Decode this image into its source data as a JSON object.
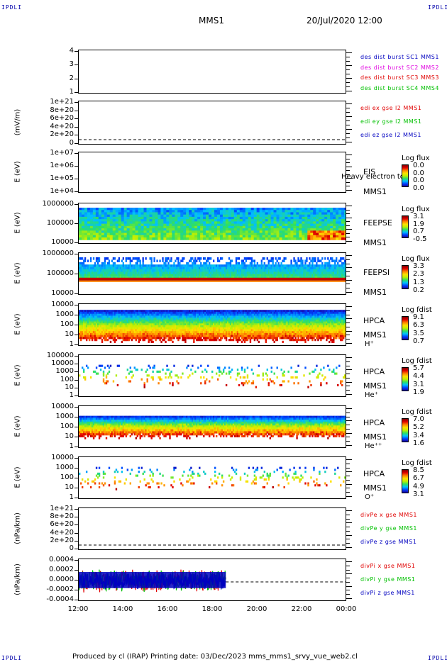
{
  "header": {
    "corner_tl": "IPDLI",
    "corner_tr": "IPDLI",
    "corner_bl": "IPDLI",
    "corner_br": "IPDLI",
    "spacecraft": "MMS1",
    "datetime": "20/Jul/2020 12:00"
  },
  "footer": {
    "text": "Produced by cl (IRAP)    Printing date: 03/Dec/2023    mms_mms1_srvy_vue_web2.cl"
  },
  "colors": {
    "blue": "#0000c0",
    "magenta": "#e000e0",
    "red": "#e00000",
    "green": "#00c000"
  },
  "chart_data": [
    {
      "type": "line",
      "panel": "des-dist-burst",
      "yticks": [
        "4",
        "3",
        "2",
        "1"
      ],
      "ylim": [
        0.5,
        4.5
      ],
      "series": [
        {
          "name": "des dist burst SC1 MMS1",
          "color": "#0000c0",
          "values": []
        },
        {
          "name": "des dist burst SC2 MMS2",
          "color": "#e000e0",
          "values": []
        },
        {
          "name": "des dist burst SC3 MMS3",
          "color": "#e00000",
          "values": []
        },
        {
          "name": "des dist burst SC4 MMS4",
          "color": "#00c000",
          "values": []
        }
      ]
    },
    {
      "type": "line",
      "panel": "edi-e-field",
      "ylabel": "(mV/m)",
      "yticks": [
        "1e+21",
        "8e+20",
        "6e+20",
        "4e+20",
        "2e+20",
        "0"
      ],
      "ylim": [
        0,
        1e+21
      ],
      "series": [
        {
          "name": "edi ex gse l2 MMS1",
          "color": "#e00000",
          "values": []
        },
        {
          "name": "edi ey gse l2 MMS1",
          "color": "#00c000",
          "values": []
        },
        {
          "name": "edi ez gse l2 MMS1",
          "color": "#0000c0",
          "values": []
        }
      ]
    },
    {
      "type": "heatmap",
      "panel": "eis",
      "ylabel": "E (eV)",
      "yticks": [
        "1e+07",
        "1e+06",
        "1e+05",
        "1e+04"
      ],
      "right_labels": [
        "EIS",
        "Heavy electron to",
        "MMS1"
      ],
      "colorbar": {
        "title": "Log flux",
        "ticks": [
          "0.0",
          "0.0",
          "0.0",
          "0.0"
        ]
      }
    },
    {
      "type": "heatmap",
      "panel": "feeps-e",
      "ylabel": "E (eV)",
      "yticks": [
        "1000000",
        "100000",
        "10000"
      ],
      "right_labels": [
        "FEEPSE",
        "MMS1"
      ],
      "colorbar": {
        "title": "Log flux",
        "ticks": [
          "3.1",
          "1.9",
          "0.7",
          "-0.5"
        ]
      }
    },
    {
      "type": "heatmap",
      "panel": "feeps-i",
      "ylabel": "E (eV)",
      "yticks": [
        "1000000",
        "100000",
        "10000"
      ],
      "right_labels": [
        "FEEPSI",
        "MMS1"
      ],
      "colorbar": {
        "title": "Log flux",
        "ticks": [
          "3.3",
          "2.3",
          "1.3",
          "0.2"
        ]
      }
    },
    {
      "type": "heatmap",
      "panel": "hpca-h",
      "ylabel": "E (eV)",
      "yticks": [
        "10000",
        "1000",
        "100",
        "10",
        "1"
      ],
      "right_labels": [
        "HPCA",
        "MMS1",
        "H⁺"
      ],
      "colorbar": {
        "title": "Log fdist",
        "ticks": [
          "9.1",
          "6.3",
          "3.5",
          "0.7"
        ]
      }
    },
    {
      "type": "heatmap",
      "panel": "hpca-he",
      "ylabel": "E (eV)",
      "yticks": [
        "100000",
        "10000",
        "1000",
        "100",
        "10",
        "1"
      ],
      "right_labels": [
        "HPCA",
        "MMS1",
        "He⁺"
      ],
      "colorbar": {
        "title": "Log fdist",
        "ticks": [
          "5.7",
          "4.4",
          "3.1",
          "1.9"
        ]
      }
    },
    {
      "type": "heatmap",
      "panel": "hpca-hepp",
      "ylabel": "E (eV)",
      "yticks": [
        "10000",
        "1000",
        "100",
        "10",
        "1"
      ],
      "right_labels": [
        "HPCA",
        "MMS1",
        "He⁺⁺"
      ],
      "colorbar": {
        "title": "Log fdist",
        "ticks": [
          "7.0",
          "5.2",
          "3.4",
          "1.6"
        ]
      }
    },
    {
      "type": "heatmap",
      "panel": "hpca-o",
      "ylabel": "E (eV)",
      "yticks": [
        "10000",
        "1000",
        "100",
        "10",
        "1"
      ],
      "right_labels": [
        "HPCA",
        "MMS1",
        "O⁺"
      ],
      "colorbar": {
        "title": "Log fdist",
        "ticks": [
          "8.5",
          "6.7",
          "4.9",
          "3.1"
        ]
      }
    },
    {
      "type": "line",
      "panel": "divpe",
      "ylabel": "(nPa/km)",
      "yticks": [
        "1e+21",
        "8e+20",
        "6e+20",
        "4e+20",
        "2e+20",
        "0"
      ],
      "ylim": [
        0,
        1e+21
      ],
      "series": [
        {
          "name": "divPe x gse MMS1",
          "color": "#e00000",
          "values": []
        },
        {
          "name": "divPe y gse MMS1",
          "color": "#00c000",
          "values": []
        },
        {
          "name": "divPe z gse MMS1",
          "color": "#0000c0",
          "values": []
        }
      ]
    },
    {
      "type": "line",
      "panel": "divpi",
      "ylabel": "(nPa/km)",
      "yticks": [
        "0.0004",
        "0.0002",
        "0.0000",
        "-0.0002",
        "-0.0004"
      ],
      "ylim": [
        -0.0005,
        0.0005
      ],
      "x_data_end": "18:35",
      "series": [
        {
          "name": "divPi x gse MMS1",
          "color": "#e00000",
          "amplitude": 0.0003
        },
        {
          "name": "divPi y gse MMS1",
          "color": "#00c000",
          "amplitude": 0.00028
        },
        {
          "name": "divPi z gse MMS1",
          "color": "#0000c0",
          "amplitude": 0.00022
        }
      ]
    }
  ],
  "xaxis": {
    "ticks": [
      "12:00",
      "14:00",
      "16:00",
      "18:00",
      "20:00",
      "22:00",
      "00:00"
    ]
  }
}
